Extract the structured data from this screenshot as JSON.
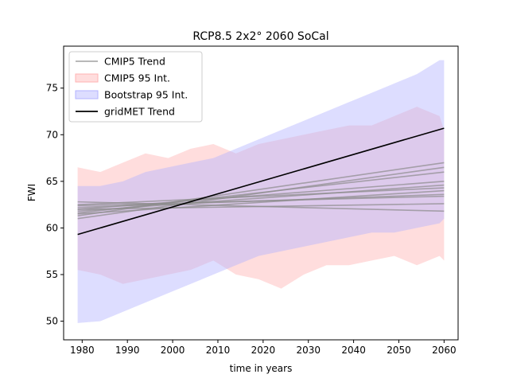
{
  "chart_data": {
    "type": "line",
    "title": "RCP8.5 2x2° 2060 SoCal",
    "xlabel": "time in years",
    "ylabel": "FWI",
    "xlim": [
      1975.9,
      2063.1
    ],
    "ylim": [
      48.0,
      79.5
    ],
    "x_ticks": [
      1980,
      1990,
      2000,
      2010,
      2020,
      2030,
      2040,
      2050,
      2060
    ],
    "y_ticks": [
      50,
      55,
      60,
      65,
      70,
      75
    ],
    "grid": false,
    "legend_position": "upper-left",
    "legend": [
      {
        "label": "CMIP5 Trend",
        "kind": "line",
        "color": "#8c8c8c"
      },
      {
        "label": "CMIP5 95 Int.",
        "kind": "patch",
        "color": "#ffb3b3"
      },
      {
        "label": "Bootstrap 95 Int.",
        "kind": "patch",
        "color": "#b3b3ff"
      },
      {
        "label": "gridMET Trend",
        "kind": "line",
        "color": "#000000"
      }
    ],
    "gridmet_trend": {
      "x": [
        1979,
        2060
      ],
      "y": [
        59.3,
        70.7
      ]
    },
    "cmip5_trends": [
      {
        "x": [
          1979,
          2060
        ],
        "y": [
          61.3,
          67.0
        ]
      },
      {
        "x": [
          1979,
          2060
        ],
        "y": [
          61.0,
          66.5
        ]
      },
      {
        "x": [
          1979,
          2060
        ],
        "y": [
          61.6,
          66.0
        ]
      },
      {
        "x": [
          1979,
          2060
        ],
        "y": [
          62.0,
          65.0
        ]
      },
      {
        "x": [
          1979,
          2060
        ],
        "y": [
          61.8,
          64.6
        ]
      },
      {
        "x": [
          1979,
          2060
        ],
        "y": [
          62.5,
          64.3
        ]
      },
      {
        "x": [
          1979,
          2060
        ],
        "y": [
          61.5,
          64.0
        ]
      },
      {
        "x": [
          1979,
          2060
        ],
        "y": [
          62.2,
          63.6
        ]
      },
      {
        "x": [
          1979,
          2060
        ],
        "y": [
          62.4,
          63.4
        ]
      },
      {
        "x": [
          1979,
          2060
        ],
        "y": [
          62.0,
          62.6
        ]
      },
      {
        "x": [
          1979,
          2060
        ],
        "y": [
          62.8,
          61.8
        ]
      }
    ],
    "cmip5_band": {
      "x": [
        1979,
        1984,
        1989,
        1994,
        1999,
        2004,
        2009,
        2014,
        2019,
        2024,
        2029,
        2034,
        2039,
        2044,
        2049,
        2054,
        2059,
        2060
      ],
      "upper": [
        66.5,
        66.0,
        67.0,
        68.0,
        67.5,
        68.5,
        69.0,
        68.0,
        69.0,
        69.5,
        70.0,
        70.5,
        71.0,
        71.0,
        72.0,
        73.0,
        72.0,
        70.5
      ],
      "lower": [
        55.5,
        55.0,
        54.0,
        54.5,
        55.0,
        55.5,
        56.5,
        55.0,
        54.5,
        53.5,
        55.0,
        56.0,
        56.0,
        56.5,
        57.0,
        56.0,
        57.0,
        56.5
      ]
    },
    "bootstrap_band": {
      "x": [
        1979,
        1984,
        1989,
        1994,
        1999,
        2004,
        2009,
        2014,
        2019,
        2024,
        2029,
        2034,
        2039,
        2044,
        2049,
        2054,
        2059,
        2060
      ],
      "upper": [
        64.5,
        64.5,
        65.0,
        66.0,
        66.5,
        67.0,
        67.5,
        68.5,
        69.5,
        70.5,
        71.5,
        72.5,
        73.5,
        74.5,
        75.5,
        76.5,
        78.0,
        78.0
      ],
      "lower": [
        49.8,
        50.0,
        51.0,
        52.0,
        53.0,
        54.0,
        55.0,
        56.0,
        57.0,
        57.5,
        58.0,
        58.5,
        59.0,
        59.5,
        59.5,
        60.0,
        60.5,
        61.0
      ]
    }
  }
}
